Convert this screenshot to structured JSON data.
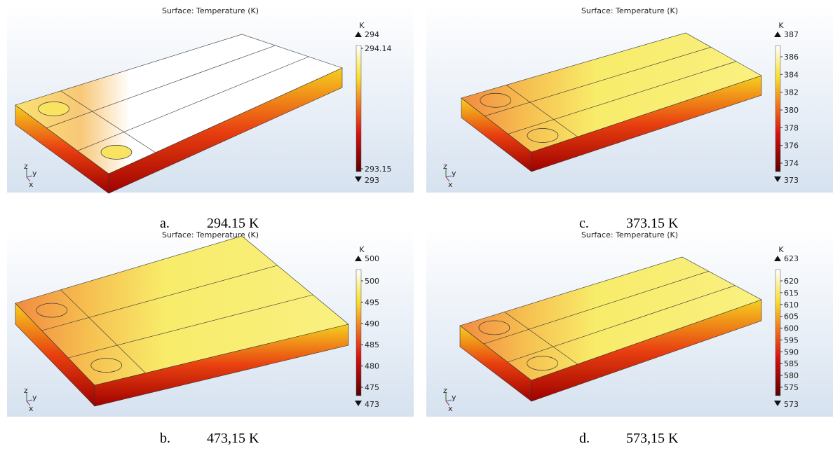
{
  "panels": [
    {
      "title": "Surface: Temperature (K)",
      "unit": "K",
      "max": "294",
      "min": "293",
      "ticks": [
        "294.14",
        "293.15"
      ],
      "axis_labels": [
        "z",
        "y",
        "x"
      ],
      "caption_label": "a.",
      "caption_text": "294,15 K"
    },
    {
      "title": "Surface: Temperature (K)",
      "unit": "K",
      "max": "500",
      "min": "473",
      "ticks": [
        "500",
        "495",
        "490",
        "485",
        "480",
        "475"
      ],
      "axis_labels": [
        "z",
        "y",
        "x"
      ],
      "caption_label": "b.",
      "caption_text": "473,15 K"
    },
    {
      "title": "Surface: Temperature (K)",
      "unit": "K",
      "max": "387",
      "min": "373",
      "ticks": [
        "386",
        "384",
        "382",
        "380",
        "378",
        "376",
        "374"
      ],
      "axis_labels": [
        "z",
        "y",
        "x"
      ],
      "caption_label": "c.",
      "caption_text": "373,15 K"
    },
    {
      "title": "Surface: Temperature (K)",
      "unit": "K",
      "max": "623",
      "min": "573",
      "ticks": [
        "620",
        "615",
        "610",
        "605",
        "600",
        "595",
        "590",
        "585",
        "580",
        "575"
      ],
      "axis_labels": [
        "z",
        "y",
        "x"
      ],
      "caption_label": "d.",
      "caption_text": "573,15 K"
    }
  ]
}
